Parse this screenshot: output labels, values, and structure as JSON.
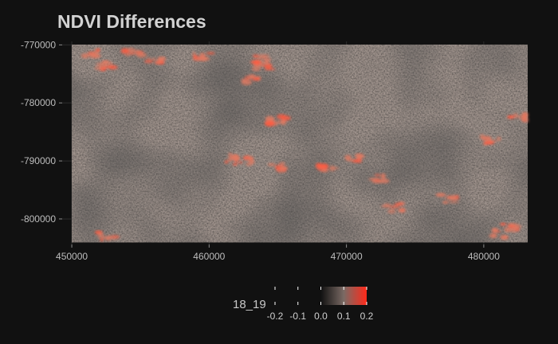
{
  "title": "NDVI Differences",
  "chart_data": {
    "type": "heatmap",
    "title": "NDVI Differences",
    "x_ticks": [
      "450000",
      "460000",
      "470000",
      "480000"
    ],
    "x_tick_values": [
      450000,
      460000,
      470000,
      480000
    ],
    "y_ticks": [
      "-770000",
      "-780000",
      "-790000",
      "-800000"
    ],
    "y_tick_values": [
      -770000,
      -780000,
      -790000,
      -800000
    ],
    "xlim": [
      449300,
      483200
    ],
    "ylim": [
      -804400,
      -769400
    ],
    "raster_extent": {
      "x": [
        450000,
        483200
      ],
      "y": [
        -804000,
        -770000
      ]
    },
    "grid": true,
    "legend": {
      "title": "18_19",
      "placement": "bottom",
      "breaks": [
        "-0.2",
        "-0.1",
        "0.0",
        "0.1",
        "0.2"
      ],
      "break_values": [
        -0.2,
        -0.1,
        0.0,
        0.1,
        0.2
      ],
      "color_range": [
        0.0,
        0.2
      ],
      "colors": [
        "#111111",
        "#7a6a64",
        "#ff2a1a"
      ]
    },
    "hotspots": [
      {
        "x": 451500,
        "y": -771500
      },
      {
        "x": 452500,
        "y": -773500
      },
      {
        "x": 454500,
        "y": -771200
      },
      {
        "x": 456000,
        "y": -772800
      },
      {
        "x": 459500,
        "y": -771800
      },
      {
        "x": 463800,
        "y": -773500
      },
      {
        "x": 464000,
        "y": -772600
      },
      {
        "x": 463000,
        "y": -776000
      },
      {
        "x": 465000,
        "y": -783000
      },
      {
        "x": 462500,
        "y": -790000
      },
      {
        "x": 461500,
        "y": -789500
      },
      {
        "x": 465000,
        "y": -791000
      },
      {
        "x": 470500,
        "y": -789500
      },
      {
        "x": 468500,
        "y": -791500
      },
      {
        "x": 472500,
        "y": -793000
      },
      {
        "x": 473500,
        "y": -798000
      },
      {
        "x": 477500,
        "y": -796500
      },
      {
        "x": 482000,
        "y": -801500
      },
      {
        "x": 481000,
        "y": -802500
      },
      {
        "x": 452500,
        "y": -803000
      },
      {
        "x": 482500,
        "y": -782500
      },
      {
        "x": 480500,
        "y": -786500
      }
    ]
  }
}
